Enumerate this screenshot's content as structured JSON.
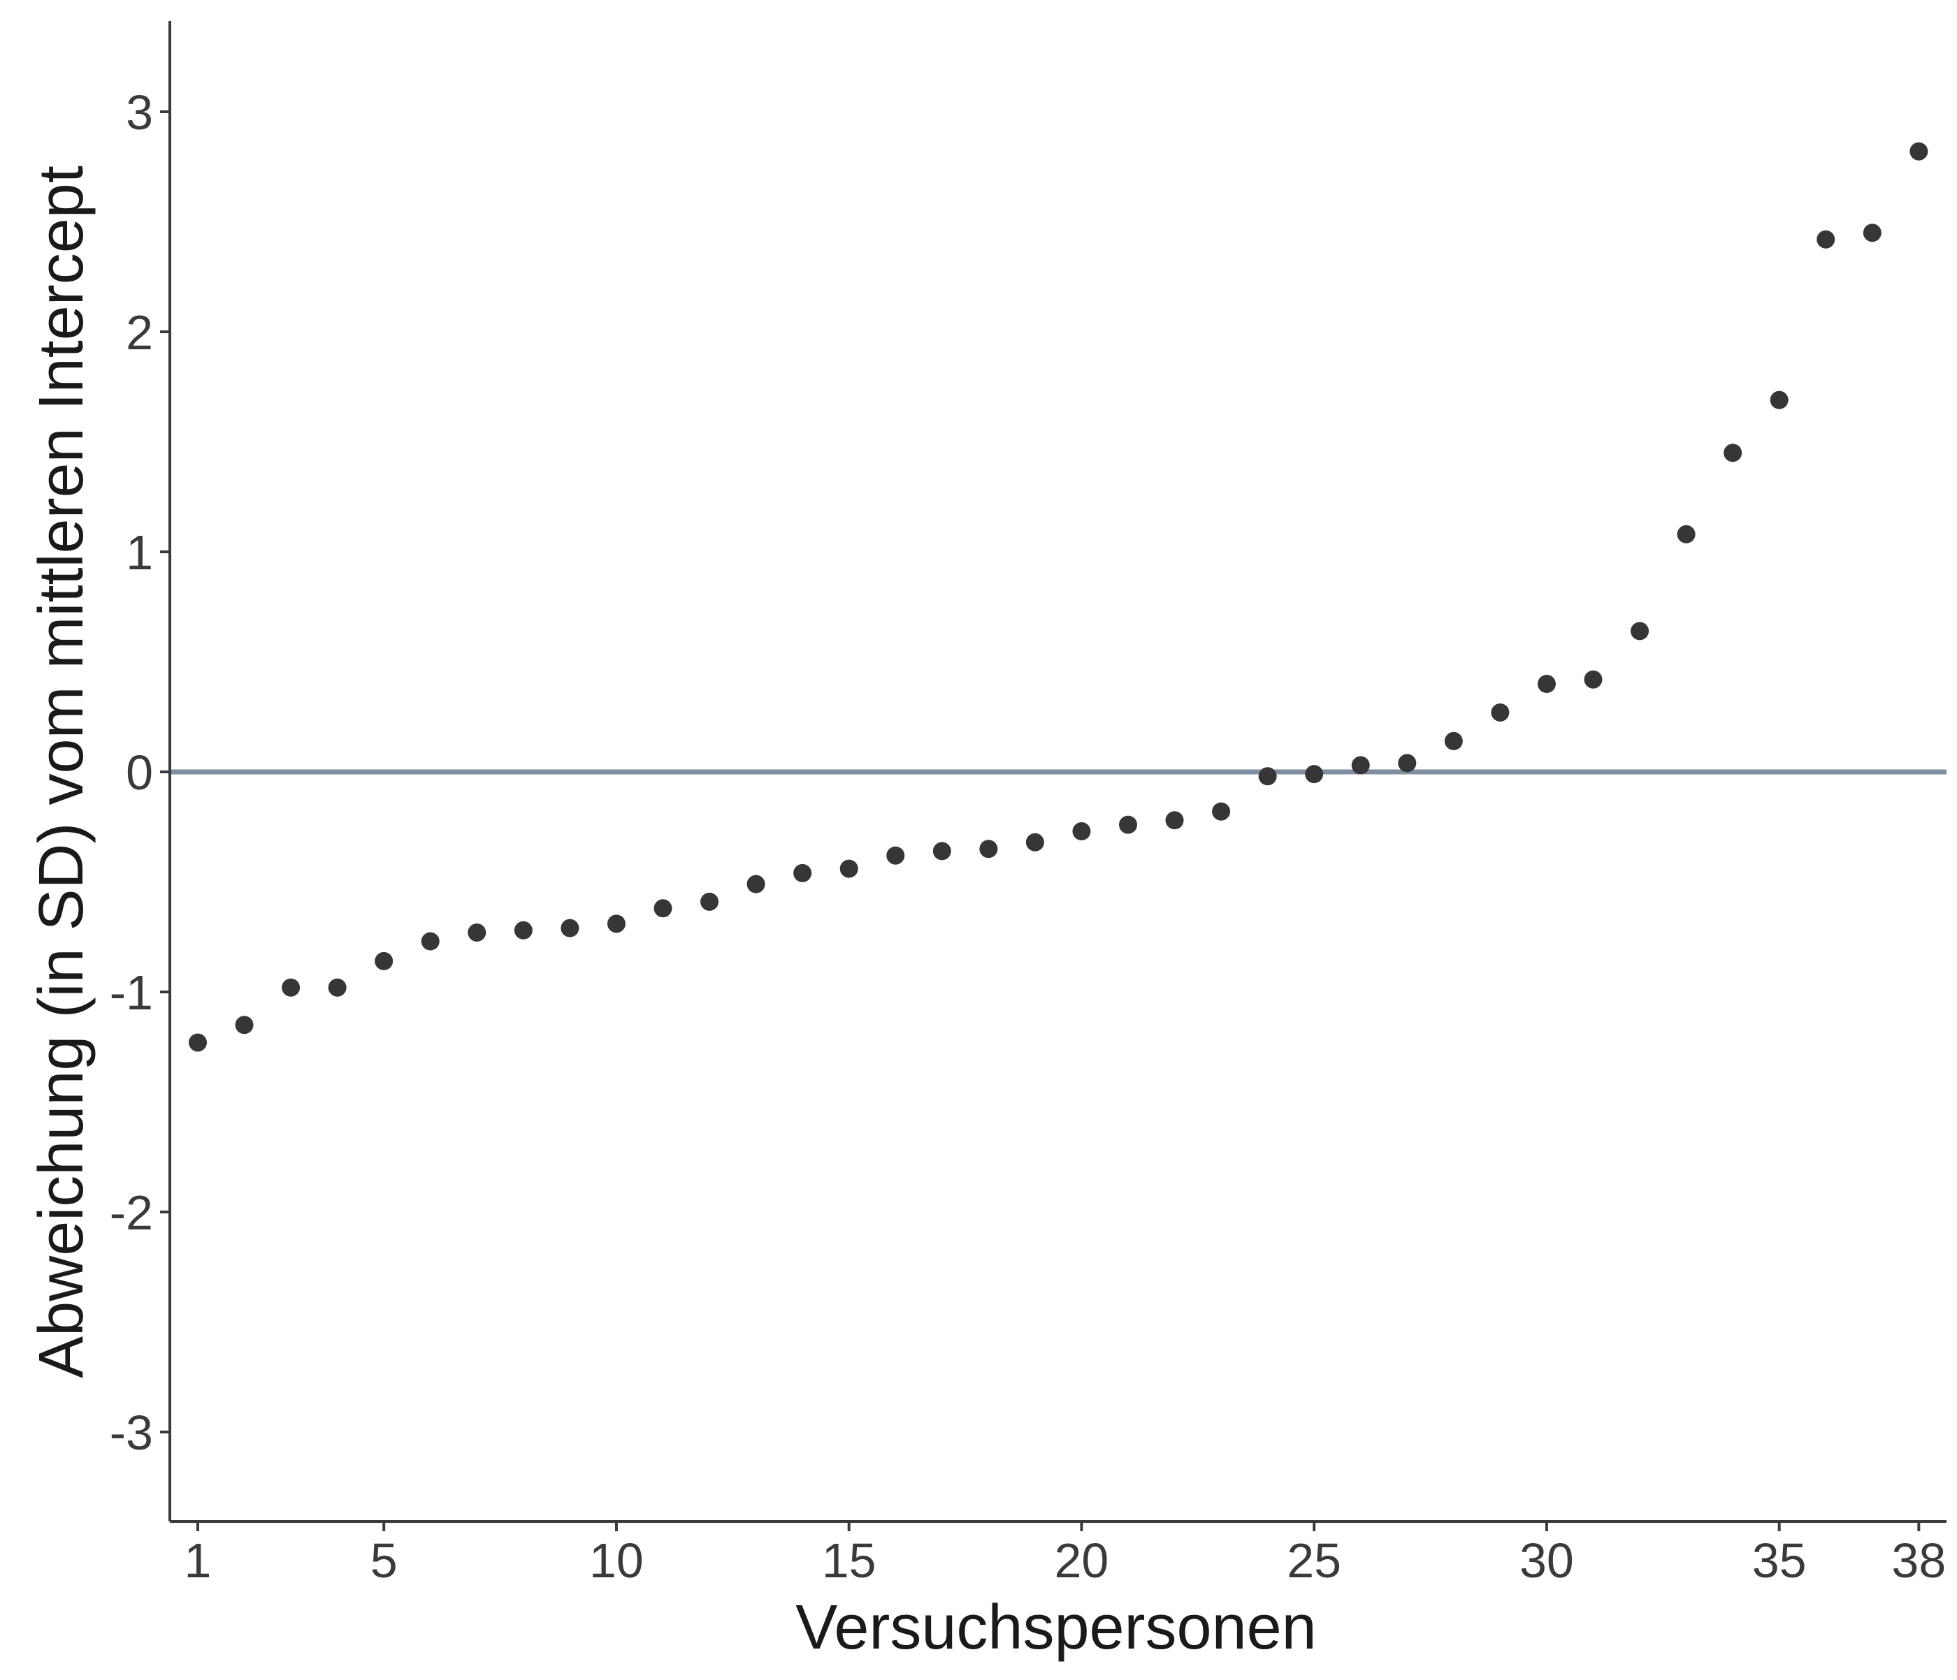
{
  "chart_data": {
    "type": "scatter",
    "title": "",
    "xlabel": "Versuchspersonen",
    "ylabel": "Abweichung (in SD) vom mittleren Intercept",
    "x": [
      1,
      2,
      3,
      4,
      5,
      6,
      7,
      8,
      9,
      10,
      11,
      12,
      13,
      14,
      15,
      16,
      17,
      18,
      19,
      20,
      21,
      22,
      23,
      24,
      25,
      26,
      27,
      28,
      29,
      30,
      31,
      32,
      33,
      34,
      35,
      36,
      37,
      38
    ],
    "y": [
      -1.23,
      -1.15,
      -0.98,
      -0.98,
      -0.86,
      -0.77,
      -0.73,
      -0.72,
      -0.71,
      -0.69,
      -0.62,
      -0.59,
      -0.51,
      -0.46,
      -0.44,
      -0.38,
      -0.36,
      -0.35,
      -0.32,
      -0.27,
      -0.24,
      -0.22,
      -0.18,
      -0.02,
      -0.01,
      0.03,
      0.04,
      0.14,
      0.27,
      0.4,
      0.42,
      0.64,
      1.08,
      1.45,
      1.69,
      2.42,
      2.45,
      2.82
    ],
    "xlim": [
      0.4,
      38.6
    ],
    "ylim": [
      -3.4,
      3.4
    ],
    "xticks": [
      1,
      5,
      10,
      15,
      20,
      25,
      30,
      35,
      38
    ],
    "yticks": [
      3,
      2,
      1,
      0,
      -1,
      -2,
      -3
    ],
    "reference_line": {
      "y": 0,
      "color": "#7f8ea0"
    },
    "point_color": "#363636",
    "axis_color": "#3a3a3a",
    "grid": false,
    "legend": "none"
  }
}
